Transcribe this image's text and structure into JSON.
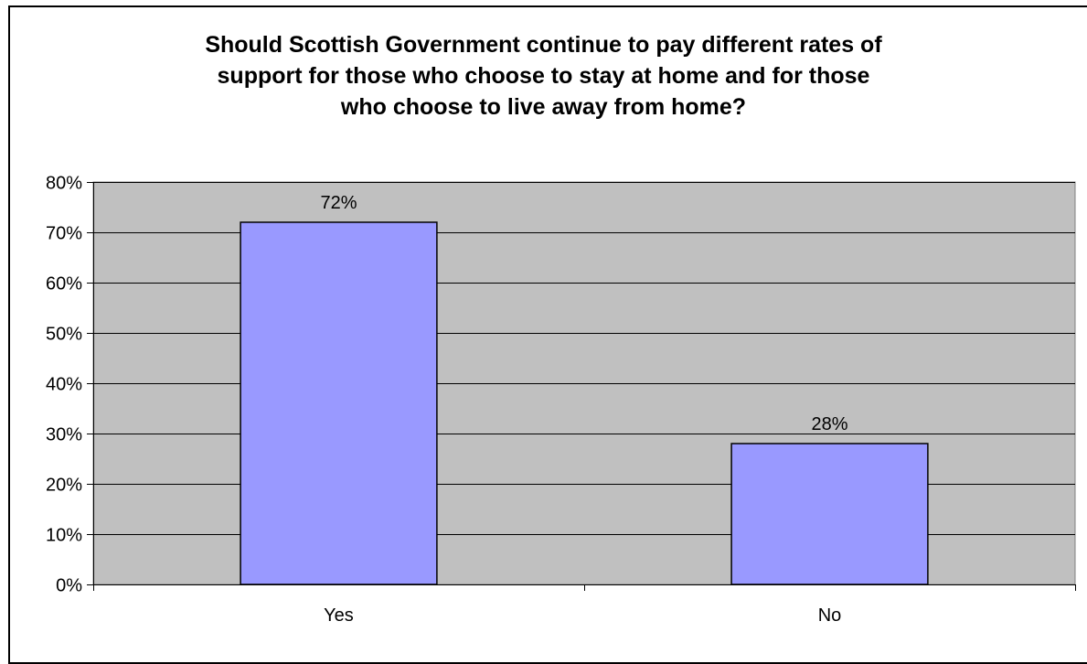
{
  "chart_data": {
    "type": "bar",
    "title_lines": [
      "Should Scottish Government continue to pay different rates of",
      "support for those who choose to stay at home and for those",
      "who choose to live away from home?"
    ],
    "categories": [
      "Yes",
      "No"
    ],
    "values": [
      0.72,
      0.28
    ],
    "data_labels": [
      "72%",
      "28%"
    ],
    "ylim": [
      0,
      0.8
    ],
    "y_ticks": [
      0,
      0.1,
      0.2,
      0.3,
      0.4,
      0.5,
      0.6,
      0.7,
      0.8
    ],
    "y_tick_labels": [
      "0%",
      "10%",
      "20%",
      "30%",
      "40%",
      "50%",
      "60%",
      "70%",
      "80%"
    ],
    "grid": true,
    "legend": "none",
    "colors": {
      "plot_background": "#c0c0c0",
      "bar_fill": "#9999ff",
      "bar_stroke": "#000000",
      "gridline": "#000000"
    }
  }
}
